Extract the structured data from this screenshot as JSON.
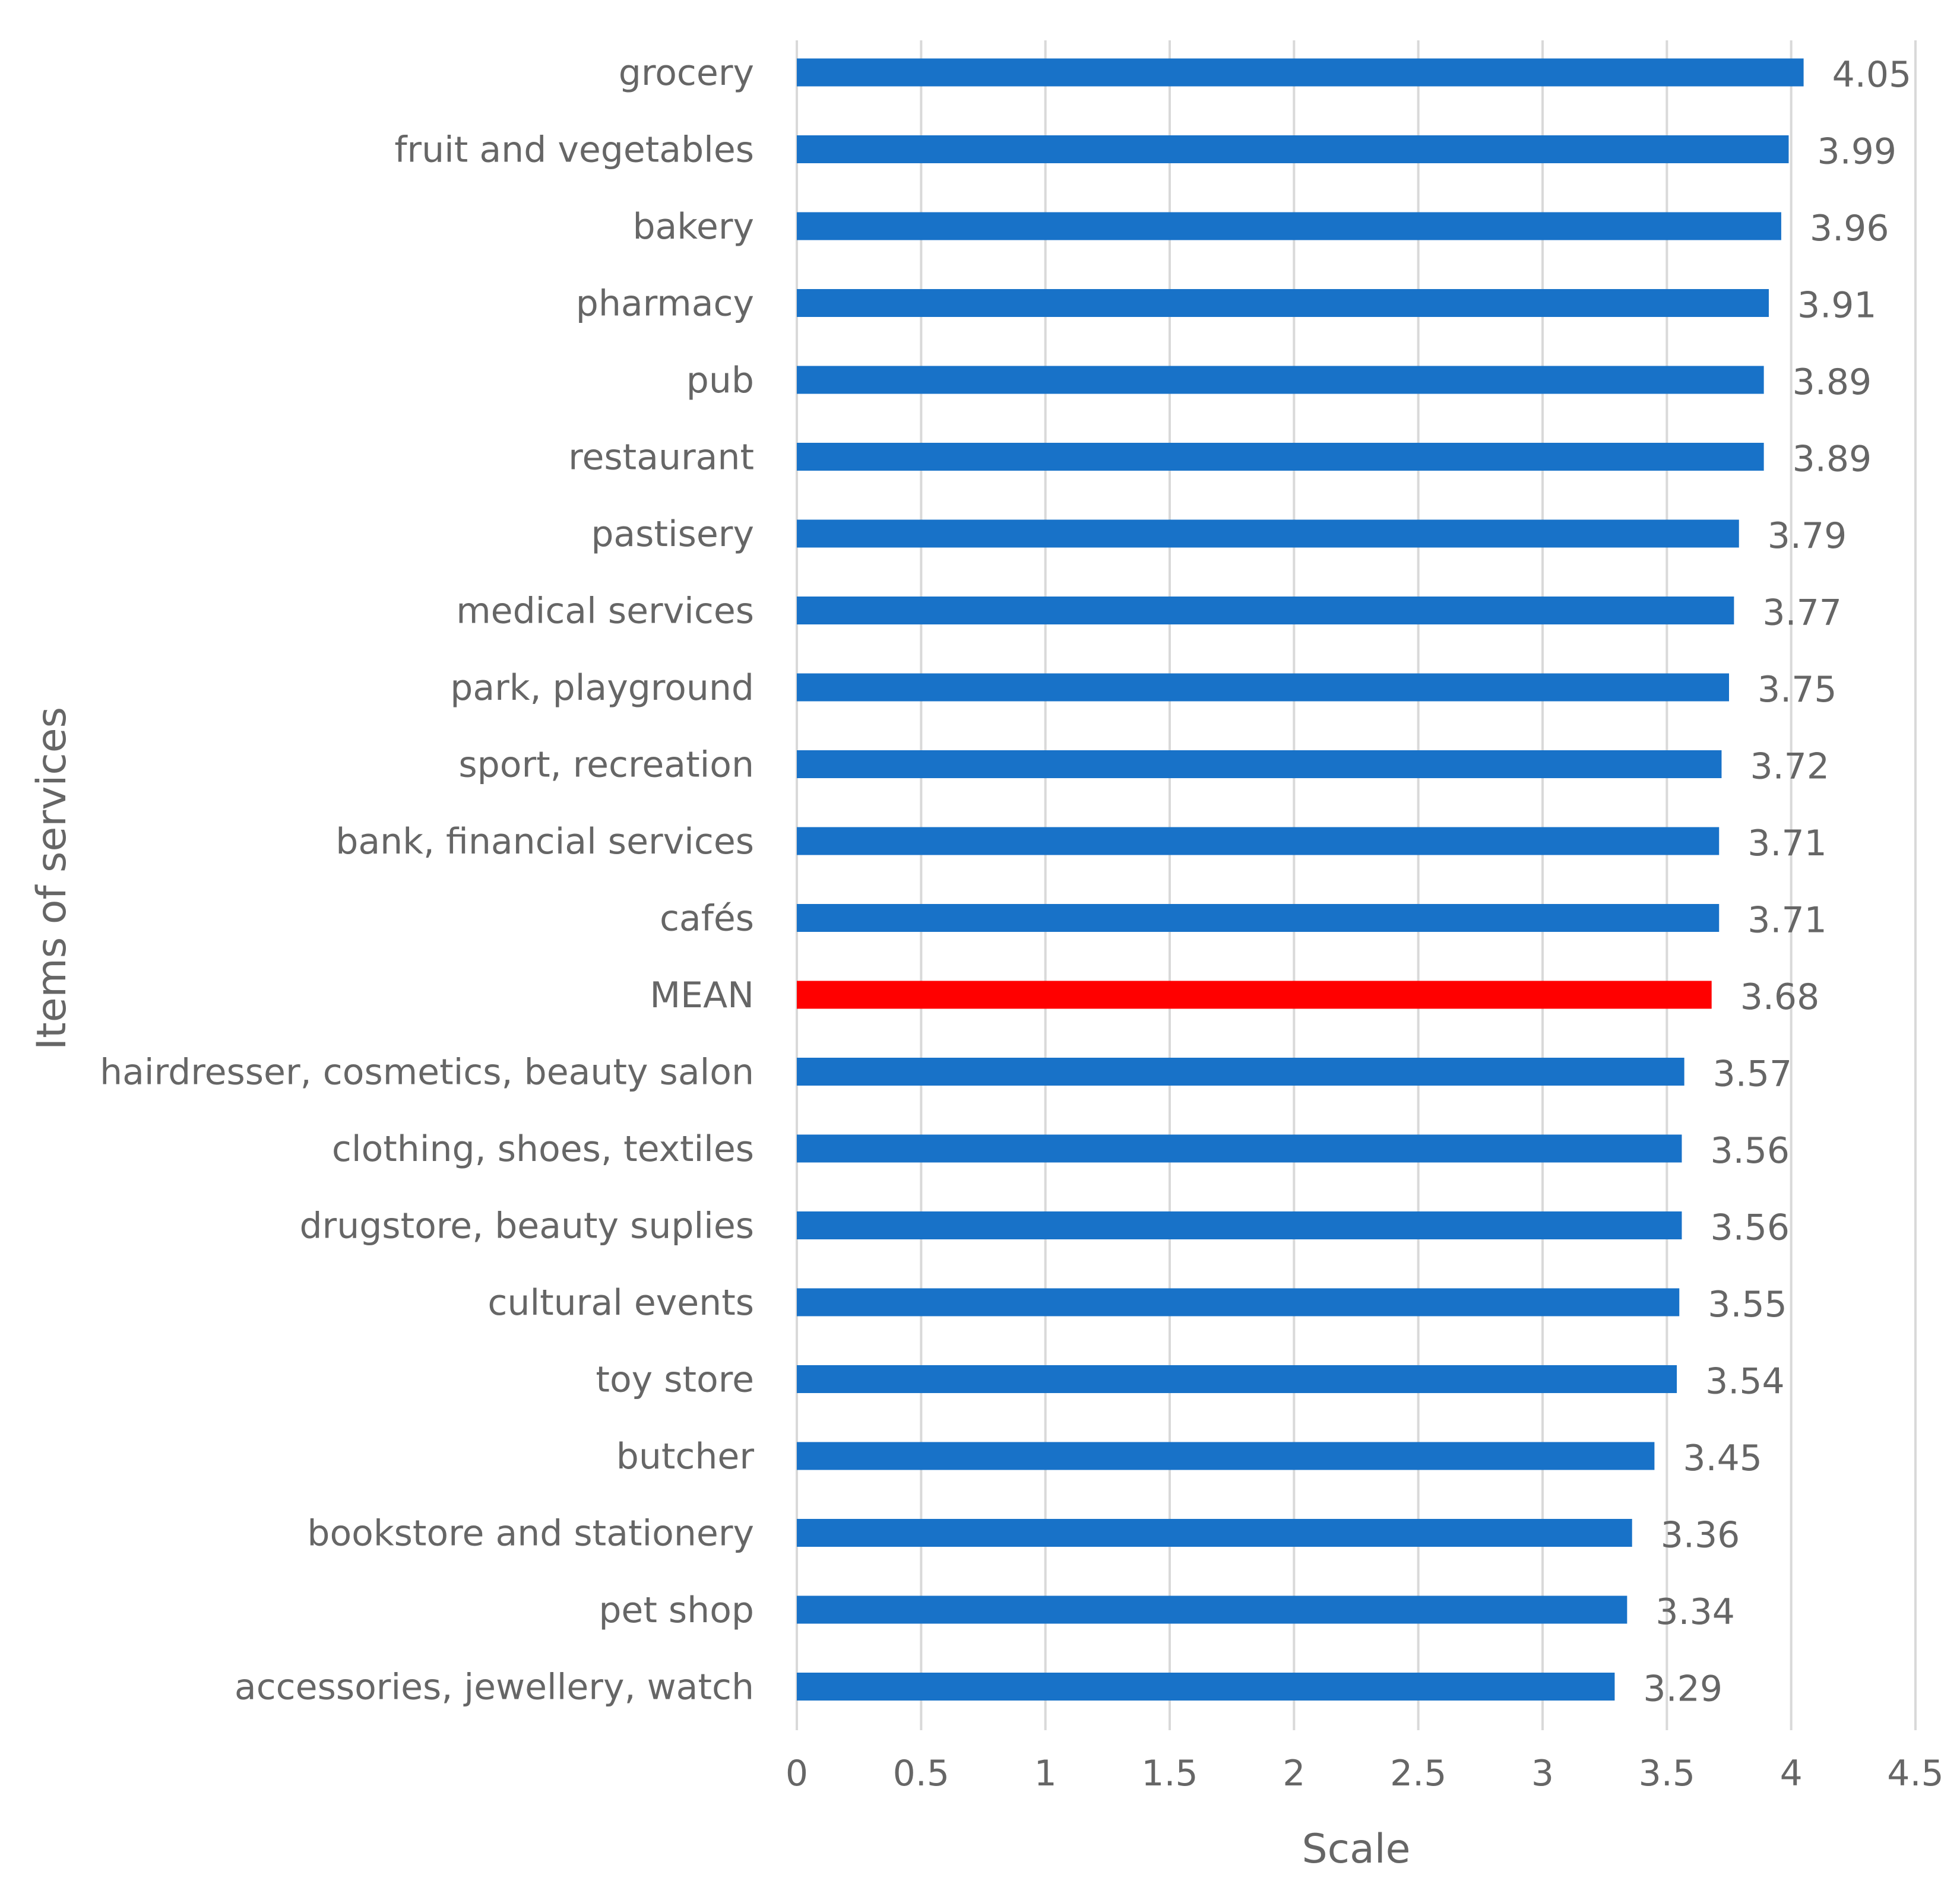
{
  "chart_data": {
    "type": "bar",
    "orientation": "horizontal",
    "title": "",
    "xlabel": "Scale",
    "ylabel": "Items of services",
    "xlim": [
      0,
      4.5
    ],
    "x_ticks": [
      0,
      0.5,
      1,
      1.5,
      2,
      2.5,
      3,
      3.5,
      4,
      4.5
    ],
    "x_tick_labels": [
      "0",
      "0.5",
      "1",
      "1.5",
      "2",
      "2.5",
      "3",
      "3.5",
      "4",
      "4.5"
    ],
    "grid": "vertical",
    "categories": [
      "grocery",
      "fruit and vegetables",
      "bakery",
      "pharmacy",
      "pub",
      "restaurant",
      "pastisery",
      "medical services",
      "park, playground",
      "sport, recreation",
      "bank, financial services",
      "cafés",
      "MEAN",
      "hairdresser, cosmetics, beauty salon",
      "clothing, shoes, textiles",
      "drugstore, beauty suplies",
      "cultural events",
      "toy store",
      "butcher",
      "bookstore and stationery",
      "pet shop",
      "accessories, jewellery, watch"
    ],
    "values": [
      4.05,
      3.99,
      3.96,
      3.91,
      3.89,
      3.89,
      3.79,
      3.77,
      3.75,
      3.72,
      3.71,
      3.71,
      3.68,
      3.57,
      3.56,
      3.56,
      3.55,
      3.54,
      3.45,
      3.36,
      3.34,
      3.29
    ],
    "value_labels": [
      "4.05",
      "3.99",
      "3.96",
      "3.91",
      "3.89",
      "3.89",
      "3.79",
      "3.77",
      "3.75",
      "3.72",
      "3.71",
      "3.71",
      "3.68",
      "3.57",
      "3.56",
      "3.56",
      "3.55",
      "3.54",
      "3.45",
      "3.36",
      "3.34",
      "3.29"
    ],
    "highlight_category": "MEAN",
    "colors": {
      "bar": "#1872C8",
      "highlight": "#FF0000",
      "grid": "#D9D9D9",
      "text": "#666666"
    }
  }
}
